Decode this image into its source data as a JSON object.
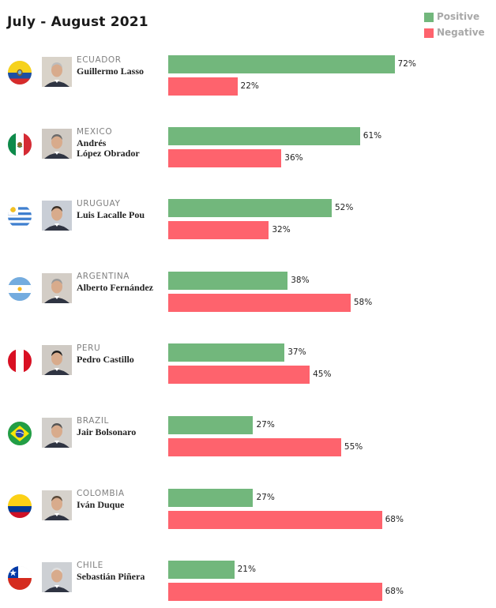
{
  "title": "July - August 2021",
  "legend": [
    {
      "label": "Positive",
      "color": "#72b77c"
    },
    {
      "label": "Negative",
      "color": "#fe636d"
    }
  ],
  "chart_data": {
    "type": "bar",
    "orientation": "horizontal",
    "title": "July - August 2021",
    "categories": [
      "Guillermo Lasso",
      "Andrés López Obrador",
      "Luis Lacalle Pou",
      "Alberto Fernández",
      "Pedro Castillo",
      "Jair Bolsonaro",
      "Iván Duque",
      "Sebastián Piñera"
    ],
    "series": [
      {
        "name": "Positive",
        "color": "#72b77c",
        "values": [
          72,
          61,
          52,
          38,
          37,
          27,
          27,
          21
        ]
      },
      {
        "name": "Negative",
        "color": "#fe636d",
        "values": [
          22,
          36,
          32,
          58,
          45,
          55,
          68,
          68
        ]
      }
    ],
    "value_format": "percent",
    "xlim": [
      0,
      100
    ],
    "grid": false,
    "legend_position": "top-right"
  },
  "rows": [
    {
      "country": "ECUADOR",
      "leader": "Guillermo Lasso",
      "positive_label": "72%",
      "negative_label": "22%",
      "flag_icon": "ecuador-flag-icon"
    },
    {
      "country": "MEXICO",
      "leader": "Andrés\nLópez Obrador",
      "positive_label": "61%",
      "negative_label": "36%",
      "flag_icon": "mexico-flag-icon"
    },
    {
      "country": "URUGUAY",
      "leader": "Luis Lacalle Pou",
      "positive_label": "52%",
      "negative_label": "32%",
      "flag_icon": "uruguay-flag-icon"
    },
    {
      "country": "ARGENTINA",
      "leader": "Alberto Fernández",
      "positive_label": "38%",
      "negative_label": "58%",
      "flag_icon": "argentina-flag-icon"
    },
    {
      "country": "PERU",
      "leader": "Pedro Castillo",
      "positive_label": "37%",
      "negative_label": "45%",
      "flag_icon": "peru-flag-icon"
    },
    {
      "country": "BRAZIL",
      "leader": "Jair Bolsonaro",
      "positive_label": "27%",
      "negative_label": "55%",
      "flag_icon": "brazil-flag-icon"
    },
    {
      "country": "COLOMBIA",
      "leader": "Iván Duque",
      "positive_label": "27%",
      "negative_label": "68%",
      "flag_icon": "colombia-flag-icon"
    },
    {
      "country": "CHILE",
      "leader": "Sebastián Piñera",
      "positive_label": "21%",
      "negative_label": "68%",
      "flag_icon": "chile-flag-icon"
    }
  ]
}
